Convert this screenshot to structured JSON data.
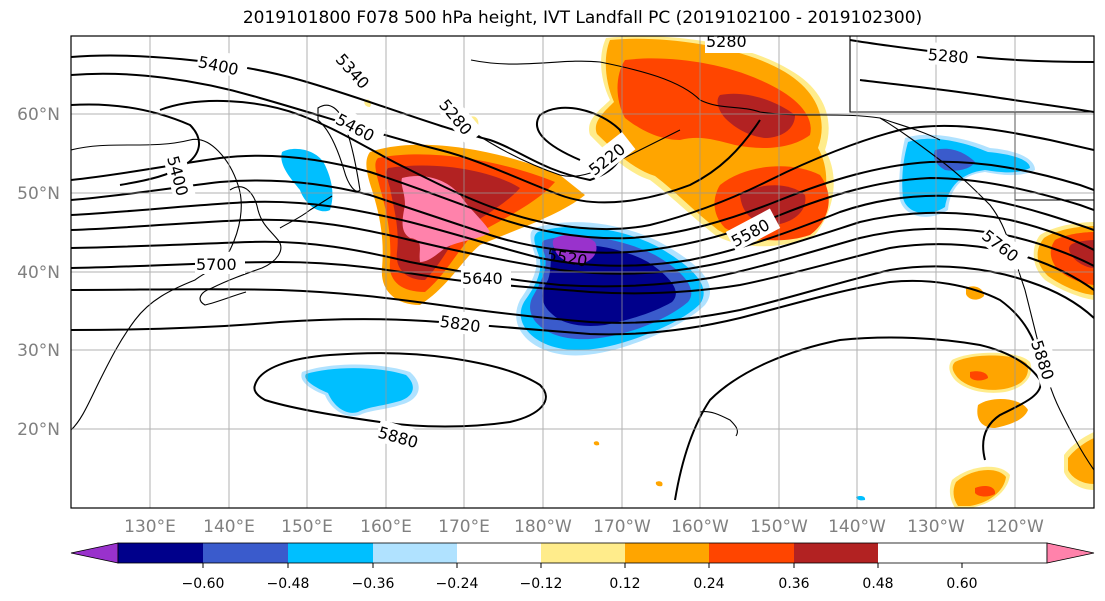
{
  "title": "2019101800 F078 500 hPa height, IVT Landfall PC (2019102100 - 2019102300)",
  "lat_labels": [
    "60°N",
    "50°N",
    "40°N",
    "30°N",
    "20°N"
  ],
  "lon_labels": [
    "130°E",
    "140°E",
    "150°E",
    "160°E",
    "170°E",
    "180°W",
    "170°W",
    "160°W",
    "150°W",
    "140°W",
    "130°W",
    "120°W"
  ],
  "contour_labels": [
    "5400",
    "5340",
    "5460",
    "5280",
    "5220",
    "5400",
    "5580",
    "5640",
    "5700",
    "5520",
    "5820",
    "5880",
    "5760",
    "5880",
    "5280",
    "5280"
  ],
  "colorbar": {
    "colors": [
      "#9932CC",
      "#00008B",
      "#3A5BCC",
      "#00BFFF",
      "#B0E2FF",
      "#FFFFFF",
      "#FFEC8B",
      "#FFA500",
      "#FF4500",
      "#B22222",
      "#FF82AB"
    ],
    "tick_labels": [
      "−0.60",
      "−0.48",
      "−0.36",
      "−0.24",
      "−0.12",
      "0.12",
      "0.24",
      "0.36",
      "0.48",
      "0.60"
    ],
    "extend": "both"
  }
}
